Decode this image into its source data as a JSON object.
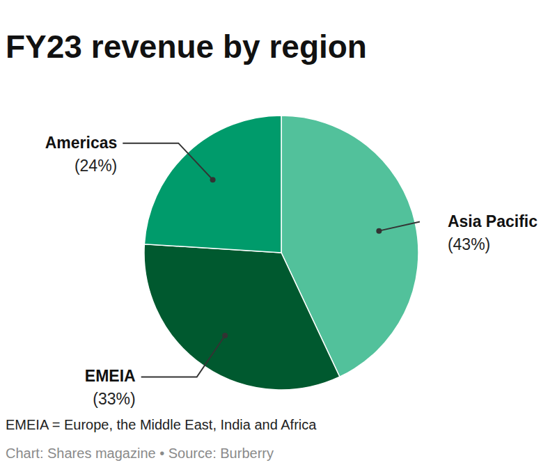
{
  "chart_data": {
    "type": "pie",
    "title": "FY23 revenue by region",
    "categories": [
      "Asia Pacific",
      "EMEIA",
      "Americas"
    ],
    "values": [
      43,
      33,
      24
    ],
    "value_labels": [
      "(43%)",
      "(33%)",
      "(24%)"
    ],
    "data_labels": true,
    "colors": [
      "#52c19b",
      "#00592f",
      "#009b6b"
    ],
    "annotations": [
      "EMEIA = Europe, the Middle East, India and Africa",
      "Chart: Shares magazine • Source: Burberry"
    ]
  }
}
